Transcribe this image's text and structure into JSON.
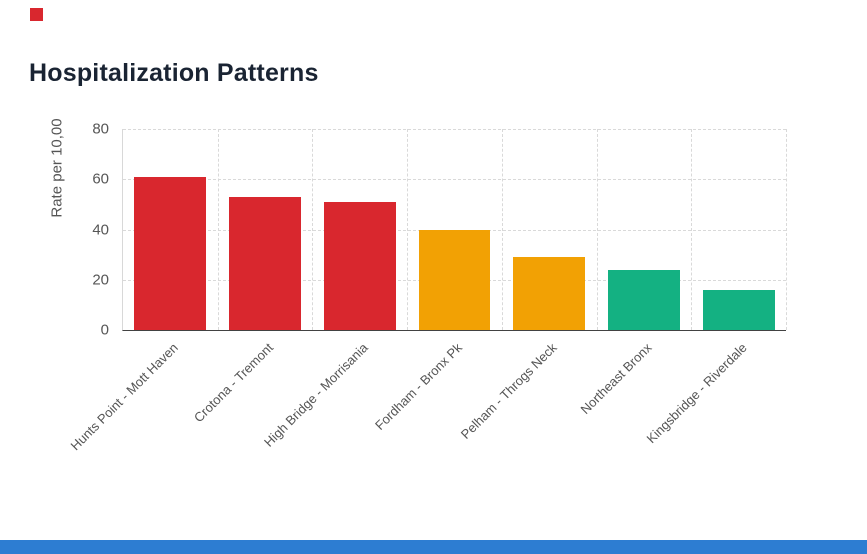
{
  "page": {
    "title": "Hospitalization Patterns",
    "red_square_color": "#d9272e",
    "bottom_bar_color": "#2d7dd2"
  },
  "chart_data": {
    "type": "bar",
    "title": "Hospitalization Patterns",
    "xlabel": "",
    "ylabel": "Rate per 10,00",
    "categories": [
      "Hunts Point - Mott Haven",
      "Crotona - Tremont",
      "High Bridge - Morrisania",
      "Fordham - Bronx Pk",
      "Pelham - Throgs Neck",
      "Northeast Bronx",
      "Kingsbridge - Riverdale"
    ],
    "values": [
      61,
      53,
      51,
      40,
      29,
      24,
      16
    ],
    "colors": [
      "#d9272e",
      "#d9272e",
      "#d9272e",
      "#f2a104",
      "#f2a104",
      "#14b182",
      "#14b182"
    ],
    "yticks": [
      0,
      20,
      40,
      60,
      80
    ],
    "ylim": [
      0,
      80
    ],
    "grid": "dashed",
    "legend": "none"
  }
}
